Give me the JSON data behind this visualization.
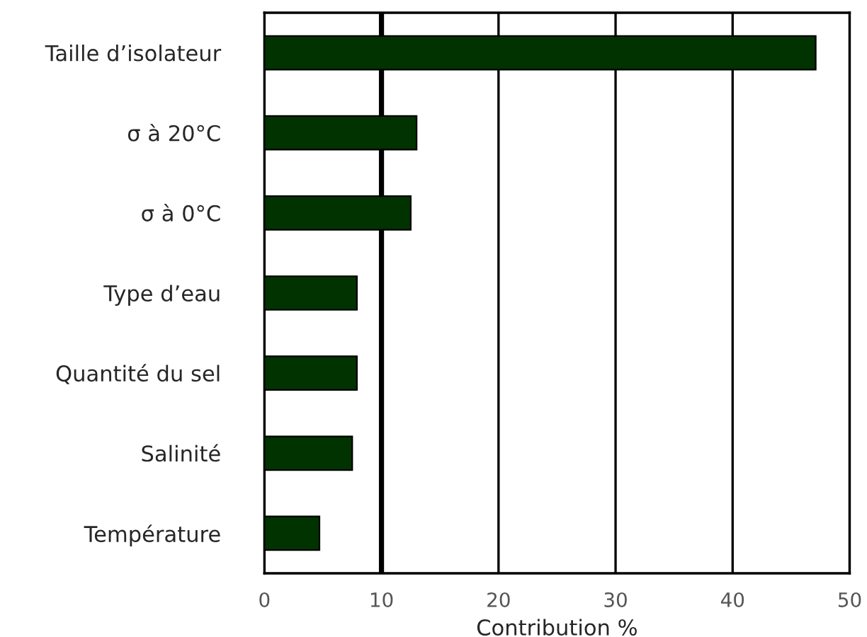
{
  "chart_data": {
    "type": "bar",
    "orientation": "horizontal",
    "xlabel": "Contribution %",
    "categories": [
      "Taille d’isolateur",
      "σ à 20°C",
      "σ à 0°C",
      "Type d’eau",
      "Quantité du sel",
      "Salinité",
      "Température"
    ],
    "values": [
      47.1,
      13.0,
      12.5,
      7.9,
      7.9,
      7.5,
      4.7
    ],
    "color": "#003300",
    "xlim": [
      0,
      50
    ],
    "xticks": [
      0,
      10,
      20,
      30,
      40,
      50
    ],
    "grid": "x",
    "ref_lines": [
      {
        "axis": "x",
        "value": 10,
        "color": "#000000"
      }
    ]
  }
}
